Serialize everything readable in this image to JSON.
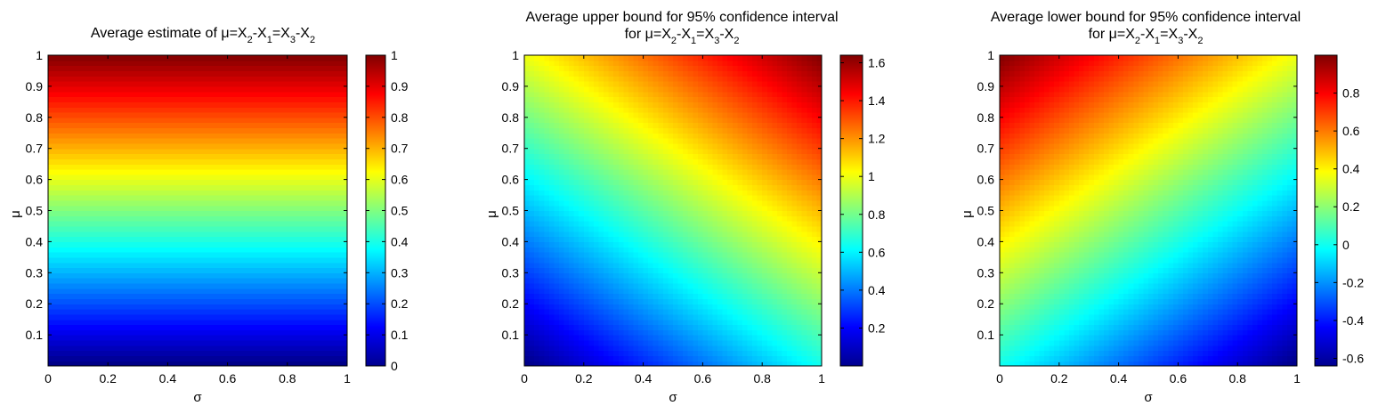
{
  "chart_data": [
    {
      "type": "heatmap",
      "title_line1": "Average estimate of μ=X₂-X₁=X₃-X₂",
      "title_line2": "",
      "xlabel": "σ",
      "ylabel": "μ",
      "xlim": [
        0,
        1
      ],
      "ylim": [
        0,
        1
      ],
      "xticks": [
        "0",
        "0.2",
        "0.4",
        "0.6",
        "0.8",
        "1"
      ],
      "yticks": [
        "0.1",
        "0.2",
        "0.3",
        "0.4",
        "0.5",
        "0.6",
        "0.7",
        "0.8",
        "0.9",
        "1"
      ],
      "z_formula": "mu",
      "clim": [
        0,
        1
      ],
      "colorbar_ticks": [
        "0",
        "0.1",
        "0.2",
        "0.3",
        "0.4",
        "0.5",
        "0.6",
        "0.7",
        "0.8",
        "0.9",
        "1"
      ],
      "colorbar_values": [
        0,
        0.1,
        0.2,
        0.3,
        0.4,
        0.5,
        0.6,
        0.7,
        0.8,
        0.9,
        1
      ],
      "colormap": "jet"
    },
    {
      "type": "heatmap",
      "title_line1": "Average upper bound for 95% confidence interval",
      "title_line2": "for μ=X₂-X₁=X₃-X₂",
      "xlabel": "σ",
      "ylabel": "μ",
      "xlim": [
        0,
        1
      ],
      "ylim": [
        0,
        1
      ],
      "xticks": [
        "0",
        "0.2",
        "0.4",
        "0.6",
        "0.8",
        "1"
      ],
      "yticks": [
        "0.1",
        "0.2",
        "0.3",
        "0.4",
        "0.5",
        "0.6",
        "0.7",
        "0.8",
        "0.9",
        "1"
      ],
      "z_formula": "mu + 0.64*sigma",
      "clim": [
        0,
        1.64
      ],
      "colorbar_ticks": [
        "0.2",
        "0.4",
        "0.6",
        "0.8",
        "1",
        "1.2",
        "1.4",
        "1.6"
      ],
      "colorbar_values": [
        0.2,
        0.4,
        0.6,
        0.8,
        1.0,
        1.2,
        1.4,
        1.6
      ],
      "colormap": "jet"
    },
    {
      "type": "heatmap",
      "title_line1": "Average lower bound for  95% confidence interval",
      "title_line2": "for μ=X₂-X₁=X₃-X₂",
      "xlabel": "σ",
      "ylabel": "μ",
      "xlim": [
        0,
        1
      ],
      "ylim": [
        0,
        1
      ],
      "xticks": [
        "0",
        "0.2",
        "0.4",
        "0.6",
        "0.8",
        "1"
      ],
      "yticks": [
        "0.1",
        "0.2",
        "0.3",
        "0.4",
        "0.5",
        "0.6",
        "0.7",
        "0.8",
        "0.9",
        "1"
      ],
      "z_formula": "mu - 0.64*sigma",
      "clim": [
        -0.64,
        1
      ],
      "colorbar_ticks": [
        "-0.6",
        "-0.4",
        "-0.2",
        "0",
        "0.2",
        "0.4",
        "0.6",
        "0.8"
      ],
      "colorbar_values": [
        -0.6,
        -0.4,
        -0.2,
        0,
        0.2,
        0.4,
        0.6,
        0.8
      ],
      "colormap": "jet"
    }
  ]
}
